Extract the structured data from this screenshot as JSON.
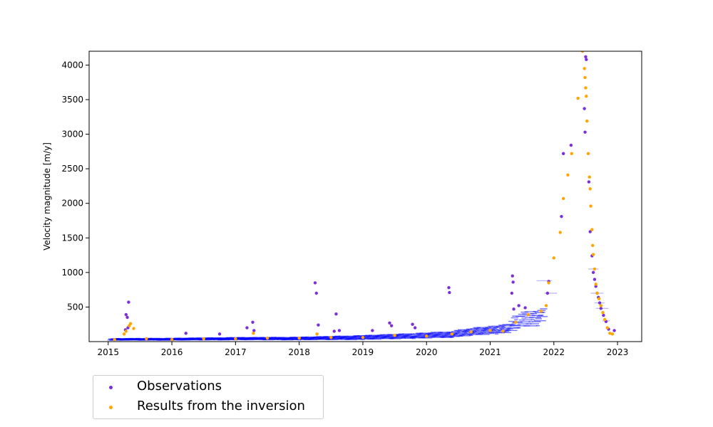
{
  "chart_data": {
    "type": "scatter",
    "title": "",
    "xlabel": "",
    "ylabel": "Velocity magnitude  [m/y]",
    "xlim": [
      2014.7,
      2023.38
    ],
    "ylim": [
      0,
      4200
    ],
    "x_ticks": [
      "2015",
      "2016",
      "2017",
      "2018",
      "2019",
      "2020",
      "2021",
      "2022",
      "2023"
    ],
    "y_ticks": [
      "500",
      "1000",
      "1500",
      "2000",
      "2500",
      "3000",
      "3500",
      "4000"
    ],
    "grid": false,
    "legend_position": "below-left",
    "colors": {
      "observations": "#7b2fd6",
      "inversion": "#ffa500",
      "error_bars": "#0000ff"
    },
    "series": [
      {
        "name": "Observations",
        "points": [
          [
            2015.28,
            390
          ],
          [
            2015.3,
            350
          ],
          [
            2015.32,
            570
          ],
          [
            2015.27,
            170
          ],
          [
            2015.31,
            200
          ],
          [
            2016.22,
            120
          ],
          [
            2016.75,
            110
          ],
          [
            2017.18,
            200
          ],
          [
            2017.27,
            280
          ],
          [
            2017.29,
            160
          ],
          [
            2018.25,
            850
          ],
          [
            2018.27,
            700
          ],
          [
            2018.3,
            240
          ],
          [
            2018.55,
            150
          ],
          [
            2018.58,
            400
          ],
          [
            2018.63,
            160
          ],
          [
            2019.15,
            160
          ],
          [
            2019.42,
            270
          ],
          [
            2019.45,
            230
          ],
          [
            2019.78,
            250
          ],
          [
            2019.82,
            200
          ],
          [
            2020.35,
            780
          ],
          [
            2020.36,
            710
          ],
          [
            2021.35,
            950
          ],
          [
            2021.36,
            860
          ],
          [
            2021.34,
            700
          ],
          [
            2021.37,
            470
          ],
          [
            2021.45,
            520
          ],
          [
            2021.55,
            490
          ],
          [
            2021.9,
            700
          ],
          [
            2021.92,
            870
          ],
          [
            2022.12,
            1810
          ],
          [
            2022.15,
            2720
          ],
          [
            2022.27,
            2840
          ],
          [
            2022.5,
            4120
          ],
          [
            2022.51,
            4080
          ],
          [
            2022.48,
            3370
          ],
          [
            2022.49,
            3030
          ],
          [
            2022.55,
            2310
          ],
          [
            2022.57,
            1590
          ],
          [
            2022.6,
            1240
          ],
          [
            2022.62,
            1000
          ],
          [
            2022.64,
            900
          ],
          [
            2022.66,
            800
          ],
          [
            2022.68,
            700
          ],
          [
            2022.7,
            640
          ],
          [
            2022.72,
            560
          ],
          [
            2022.74,
            480
          ],
          [
            2022.78,
            380
          ],
          [
            2022.82,
            290
          ],
          [
            2022.86,
            180
          ],
          [
            2022.95,
            160
          ]
        ]
      },
      {
        "name": "Results from the inversion",
        "points": [
          [
            2015.1,
            30
          ],
          [
            2015.25,
            110
          ],
          [
            2015.28,
            150
          ],
          [
            2015.33,
            230
          ],
          [
            2015.35,
            260
          ],
          [
            2015.4,
            190
          ],
          [
            2015.6,
            40
          ],
          [
            2016.0,
            30
          ],
          [
            2016.5,
            40
          ],
          [
            2017.0,
            40
          ],
          [
            2017.28,
            120
          ],
          [
            2017.5,
            50
          ],
          [
            2018.0,
            50
          ],
          [
            2018.28,
            110
          ],
          [
            2018.5,
            60
          ],
          [
            2019.0,
            60
          ],
          [
            2019.5,
            90
          ],
          [
            2020.0,
            80
          ],
          [
            2020.4,
            110
          ],
          [
            2020.7,
            140
          ],
          [
            2021.0,
            160
          ],
          [
            2021.2,
            150
          ],
          [
            2021.4,
            280
          ],
          [
            2021.6,
            390
          ],
          [
            2021.8,
            440
          ],
          [
            2021.88,
            520
          ],
          [
            2021.92,
            850
          ],
          [
            2022.0,
            1210
          ],
          [
            2022.1,
            1580
          ],
          [
            2022.15,
            2070
          ],
          [
            2022.22,
            2410
          ],
          [
            2022.28,
            2720
          ],
          [
            2022.38,
            3520
          ],
          [
            2022.45,
            4200
          ],
          [
            2022.48,
            3950
          ],
          [
            2022.49,
            3820
          ],
          [
            2022.5,
            3670
          ],
          [
            2022.51,
            3550
          ],
          [
            2022.52,
            3190
          ],
          [
            2022.54,
            2720
          ],
          [
            2022.56,
            2380
          ],
          [
            2022.57,
            2210
          ],
          [
            2022.58,
            1960
          ],
          [
            2022.6,
            1620
          ],
          [
            2022.61,
            1390
          ],
          [
            2022.62,
            1260
          ],
          [
            2022.64,
            1050
          ],
          [
            2022.66,
            830
          ],
          [
            2022.68,
            700
          ],
          [
            2022.71,
            620
          ],
          [
            2022.74,
            520
          ],
          [
            2022.77,
            420
          ],
          [
            2022.8,
            320
          ],
          [
            2022.84,
            200
          ],
          [
            2022.88,
            120
          ],
          [
            2022.92,
            110
          ]
        ]
      }
    ]
  },
  "legend": {
    "items": [
      {
        "label": "Observations"
      },
      {
        "label": "Results from the inversion"
      }
    ]
  }
}
